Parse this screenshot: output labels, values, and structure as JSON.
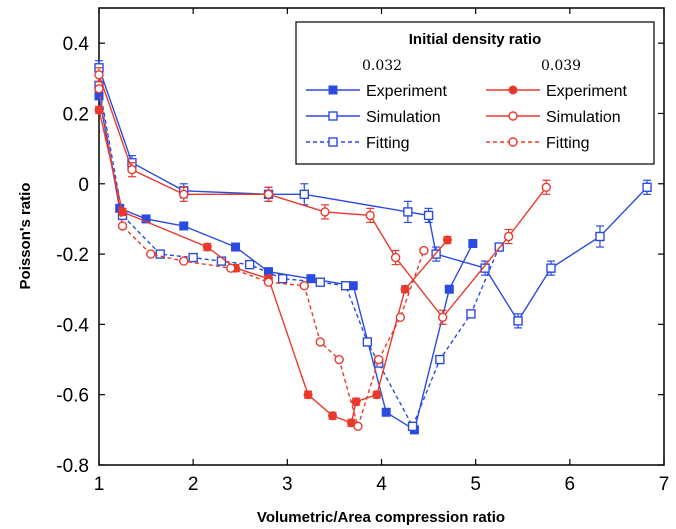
{
  "chart_data": {
    "type": "line",
    "xlabel": "Volumetric/Area compression ratio",
    "ylabel": "Poisson's ratio",
    "xlim": [
      1,
      7
    ],
    "ylim": [
      -0.8,
      0.5
    ],
    "xticks": [
      1,
      2,
      3,
      4,
      5,
      6,
      7
    ],
    "yticks": [
      0.4,
      0.2,
      0,
      -0.2,
      -0.4,
      -0.6,
      -0.8
    ],
    "xtick_labels": [
      "1",
      "2",
      "3",
      "4",
      "5",
      "6",
      "7"
    ],
    "ytick_labels": [
      "0.4",
      "0.2",
      "0",
      "-0.2",
      "-0.4",
      "-0.6",
      "-0.8"
    ],
    "grid": false,
    "legend": {
      "placement": "top-right",
      "title": "Initial density ratio",
      "groups": [
        "0.032",
        "0.039"
      ],
      "entries": [
        "Experiment",
        "Simulation",
        "Fitting"
      ]
    },
    "colors": {
      "blue": "#2b4be0",
      "red": "#e83a2c"
    },
    "series": [
      {
        "name": "Experiment",
        "group": "0.032",
        "color": "blue",
        "style": "solid",
        "marker": "filled-square",
        "x": [
          1.0,
          1.22,
          1.5,
          1.9,
          2.45,
          2.8,
          3.25,
          3.7,
          4.05,
          4.35,
          4.72,
          4.97
        ],
        "y": [
          0.25,
          -0.07,
          -0.1,
          -0.12,
          -0.18,
          -0.25,
          -0.27,
          -0.29,
          -0.65,
          -0.7,
          -0.3,
          -0.17
        ],
        "err": [
          0.01,
          0.01,
          0.01,
          0.01,
          0.01,
          0.01,
          0.01,
          0.01,
          0.01,
          0.01,
          0.01,
          0.01
        ]
      },
      {
        "name": "Simulation",
        "group": "0.032",
        "color": "blue",
        "style": "solid",
        "marker": "open-square",
        "x": [
          1.0,
          1.35,
          1.9,
          2.8,
          3.18,
          4.28,
          4.5,
          4.58,
          5.1,
          5.45,
          5.8,
          6.32,
          6.82
        ],
        "y": [
          0.33,
          0.06,
          -0.02,
          -0.03,
          -0.03,
          -0.08,
          -0.09,
          -0.2,
          -0.24,
          -0.39,
          -0.24,
          -0.15,
          -0.01
        ],
        "err": [
          0.02,
          0.02,
          0.02,
          0.02,
          0.03,
          0.03,
          0.02,
          0.02,
          0.02,
          0.02,
          0.02,
          0.03,
          0.02
        ]
      },
      {
        "name": "Fitting",
        "group": "0.032",
        "color": "blue",
        "style": "dashed",
        "marker": "open-square",
        "x": [
          1.0,
          1.25,
          1.65,
          2.0,
          2.3,
          2.6,
          2.95,
          3.35,
          3.62,
          3.85,
          3.97,
          4.33,
          4.62,
          4.95,
          5.25
        ],
        "y": [
          0.28,
          -0.09,
          -0.2,
          -0.21,
          -0.22,
          -0.23,
          -0.27,
          -0.28,
          -0.29,
          -0.45,
          -0.51,
          -0.69,
          -0.5,
          -0.37,
          -0.18
        ]
      },
      {
        "name": "Experiment",
        "group": "0.039",
        "color": "red",
        "style": "solid",
        "marker": "filled-circle",
        "x": [
          1.0,
          1.25,
          2.15,
          2.45,
          2.8,
          3.22,
          3.48,
          3.68,
          3.73,
          3.95,
          4.25,
          4.7
        ],
        "y": [
          0.21,
          -0.08,
          -0.18,
          -0.24,
          -0.27,
          -0.6,
          -0.66,
          -0.68,
          -0.62,
          -0.6,
          -0.3,
          -0.16
        ],
        "err": [
          0.01,
          0.01,
          0.01,
          0.01,
          0.01,
          0.01,
          0.01,
          0.01,
          0.01,
          0.01,
          0.01,
          0.01
        ]
      },
      {
        "name": "Simulation",
        "group": "0.039",
        "color": "red",
        "style": "solid",
        "marker": "open-circle",
        "x": [
          1.0,
          1.35,
          1.9,
          2.8,
          3.4,
          3.88,
          4.15,
          4.65,
          5.35,
          5.75
        ],
        "y": [
          0.31,
          0.04,
          -0.03,
          -0.03,
          -0.08,
          -0.09,
          -0.21,
          -0.38,
          -0.15,
          -0.01
        ],
        "err": [
          0.02,
          0.02,
          0.02,
          0.02,
          0.02,
          0.02,
          0.02,
          0.02,
          0.02,
          0.02
        ]
      },
      {
        "name": "Fitting",
        "group": "0.039",
        "color": "red",
        "style": "dashed",
        "marker": "open-circle",
        "x": [
          1.0,
          1.25,
          1.55,
          1.9,
          2.4,
          2.8,
          3.18,
          3.35,
          3.55,
          3.75,
          3.97,
          4.2,
          4.45
        ],
        "y": [
          0.27,
          -0.12,
          -0.2,
          -0.22,
          -0.24,
          -0.28,
          -0.29,
          -0.45,
          -0.5,
          -0.69,
          -0.5,
          -0.38,
          -0.19
        ]
      }
    ]
  }
}
